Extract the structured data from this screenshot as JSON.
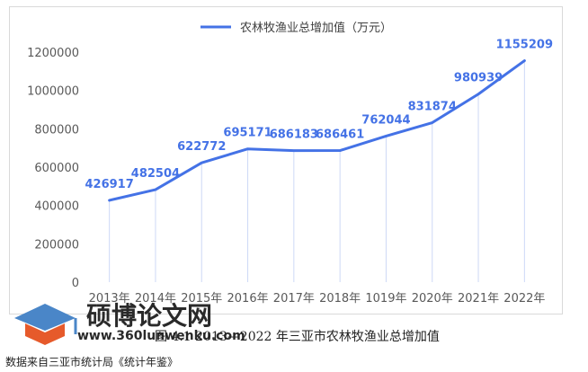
{
  "chart_data": {
    "type": "line",
    "title": "",
    "legend": "农林牧渔业总增加值（万元）",
    "legend_position": "top",
    "categories": [
      "2013年",
      "2014年",
      "2015年",
      "2016年",
      "2017年",
      "2018年",
      "1019年",
      "2020年",
      "2021年",
      "2022年"
    ],
    "series": [
      {
        "name": "农林牧渔业总增加值（万元）",
        "values": [
          426917,
          482504,
          622772,
          695171,
          686183,
          686461,
          762044,
          831874,
          980939,
          1155209
        ]
      }
    ],
    "ylim": [
      0,
      1200000
    ],
    "yticks": [
      0,
      200000,
      400000,
      600000,
      800000,
      1000000,
      1200000
    ],
    "drop_lines": true,
    "colors": {
      "line": "#4472e6",
      "label": "#4472e6",
      "dropline": "#cdd8f6"
    }
  },
  "caption": "图 4.1 2013—2022 年三亚市农林牧渔业总增加值",
  "source": "数据来自三亚市统计局《统计年鉴》",
  "watermark": {
    "title": "硕博论文网",
    "url": "www.360lunwenku.com"
  }
}
